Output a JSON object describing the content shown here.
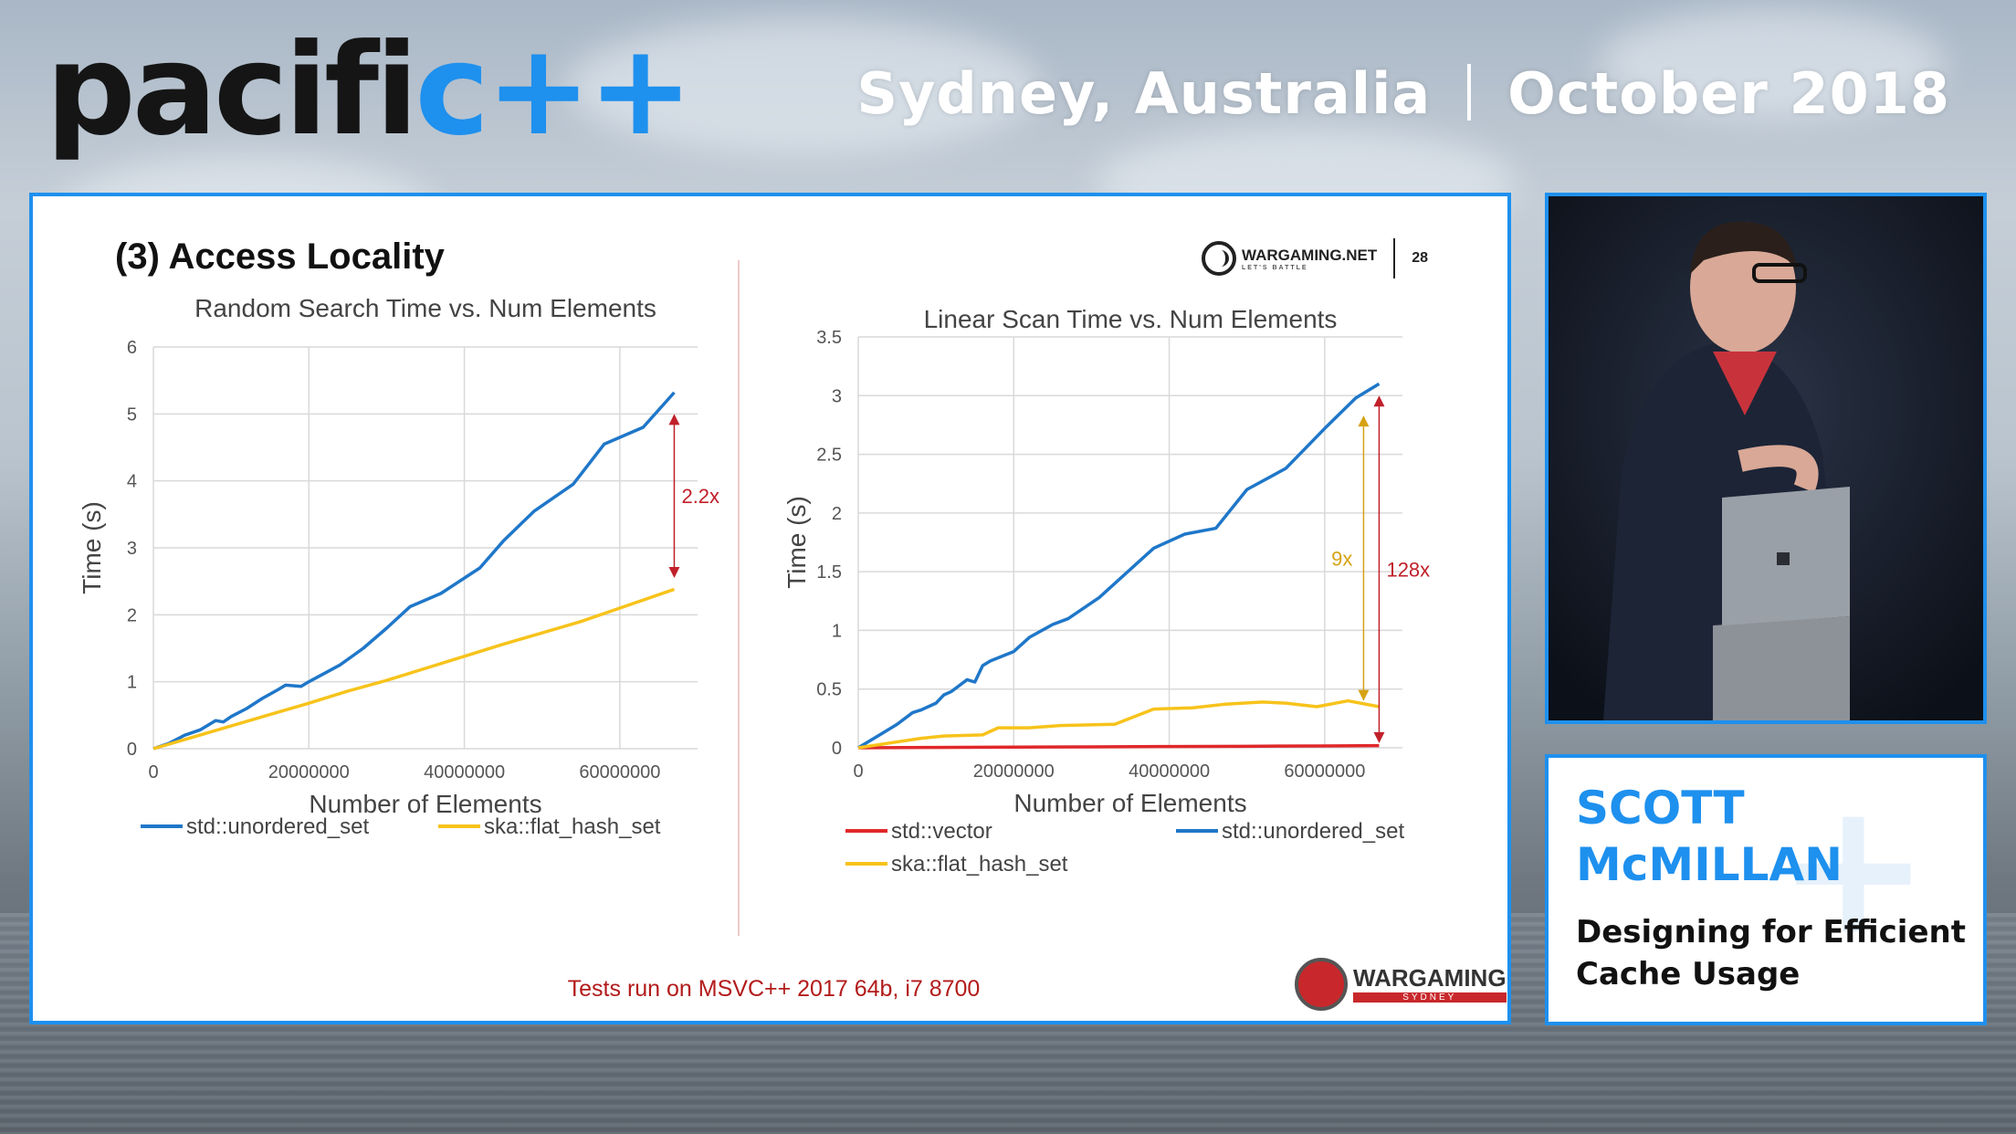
{
  "header": {
    "logo_main": "pacifi",
    "logo_accent": "c++",
    "location": "Sydney, Australia",
    "date": "October 2018"
  },
  "slide": {
    "title": "(3) Access Locality",
    "brand": "WARGAMING.NET",
    "brand_tagline": "LET'S BATTLE",
    "page_number": "28",
    "footer_note": "Tests run on MSVC++ 2017 64b, i7 8700",
    "bottom_brand": "WARGAMING",
    "bottom_brand_sub": "SYDNEY"
  },
  "speaker": {
    "name_line1": "SCOTT",
    "name_line2": "McMILLAN",
    "talk_line1": "Designing for Efficient",
    "talk_line2": "Cache Usage"
  },
  "colors": {
    "accent": "#1e90ee",
    "unordered_set": "#1f77c9",
    "flat_hash_set": "#f7c31b",
    "vector": "#e0282b",
    "annotation_red": "#c0202a",
    "annotation_gold": "#d6a214"
  },
  "chart_data": [
    {
      "type": "line",
      "title": "Random Search Time vs. Num Elements",
      "xlabel": "Number of Elements",
      "ylabel": "Time (s)",
      "xlim": [
        0,
        70000000
      ],
      "ylim": [
        0,
        6
      ],
      "x_ticks": [
        0,
        20000000,
        40000000,
        60000000
      ],
      "x_tick_labels": [
        "0",
        "20000000",
        "40000000",
        "60000000"
      ],
      "y_ticks": [
        0,
        1,
        2,
        3,
        4,
        5,
        6
      ],
      "y_tick_labels": [
        "0",
        "1",
        "2",
        "3",
        "4",
        "5",
        "6"
      ],
      "grid": true,
      "legend": "bottom",
      "series": [
        {
          "name": "std::unordered_set",
          "color": "#1f77c9",
          "x": [
            0,
            2000000,
            4000000,
            6000000,
            8000000,
            9000000,
            10000000,
            12000000,
            14000000,
            16000000,
            17000000,
            19000000,
            20000000,
            24000000,
            27000000,
            30000000,
            33000000,
            37000000,
            42000000,
            45000000,
            49000000,
            54000000,
            58000000,
            63000000,
            67000000
          ],
          "y": [
            0,
            0.08,
            0.2,
            0.28,
            0.42,
            0.4,
            0.48,
            0.6,
            0.75,
            0.88,
            0.95,
            0.93,
            1.0,
            1.25,
            1.5,
            1.8,
            2.12,
            2.32,
            2.7,
            3.1,
            3.55,
            3.95,
            4.55,
            4.8,
            5.32
          ]
        },
        {
          "name": "ska::flat_hash_set",
          "color": "#f7c31b",
          "x": [
            0,
            5000000,
            10000000,
            15000000,
            20000000,
            25000000,
            30000000,
            35000000,
            40000000,
            45000000,
            50000000,
            55000000,
            60000000,
            67000000
          ],
          "y": [
            0,
            0.17,
            0.34,
            0.51,
            0.68,
            0.86,
            1.02,
            1.2,
            1.38,
            1.56,
            1.73,
            1.9,
            2.1,
            2.38
          ]
        }
      ],
      "annotations": [
        {
          "text": "2.2x",
          "x": 67000000,
          "y_from": 5.0,
          "y_to": 2.55,
          "color": "#c0202a"
        }
      ]
    },
    {
      "type": "line",
      "title": "Linear Scan Time vs. Num Elements",
      "xlabel": "Number of Elements",
      "ylabel": "Time (s)",
      "xlim": [
        0,
        70000000
      ],
      "ylim": [
        0,
        3.5
      ],
      "x_ticks": [
        0,
        20000000,
        40000000,
        60000000
      ],
      "x_tick_labels": [
        "0",
        "20000000",
        "40000000",
        "60000000"
      ],
      "y_ticks": [
        0,
        0.5,
        1,
        1.5,
        2,
        2.5,
        3,
        3.5
      ],
      "y_tick_labels": [
        "0",
        "0.5",
        "1",
        "1.5",
        "2",
        "2.5",
        "3",
        "3.5"
      ],
      "grid": true,
      "legend": "bottom",
      "series": [
        {
          "name": "std::vector",
          "color": "#e0282b",
          "x": [
            0,
            10000000,
            20000000,
            30000000,
            40000000,
            50000000,
            60000000,
            67000000
          ],
          "y": [
            0,
            0.003,
            0.006,
            0.008,
            0.011,
            0.013,
            0.016,
            0.018
          ]
        },
        {
          "name": "std::unordered_set",
          "color": "#1f77c9",
          "x": [
            0,
            3000000,
            5000000,
            7000000,
            8000000,
            10000000,
            11000000,
            12000000,
            14000000,
            15000000,
            16000000,
            17000000,
            20000000,
            22000000,
            25000000,
            27000000,
            31000000,
            38000000,
            42000000,
            46000000,
            50000000,
            55000000,
            60000000,
            64000000,
            67000000
          ],
          "y": [
            0,
            0.12,
            0.2,
            0.3,
            0.32,
            0.38,
            0.45,
            0.48,
            0.58,
            0.56,
            0.7,
            0.74,
            0.82,
            0.94,
            1.05,
            1.1,
            1.28,
            1.7,
            1.82,
            1.87,
            2.2,
            2.38,
            2.72,
            2.98,
            3.1
          ]
        },
        {
          "name": "ska::flat_hash_set",
          "color": "#f7c31b",
          "x": [
            0,
            5000000,
            8000000,
            11000000,
            16000000,
            18000000,
            22000000,
            26000000,
            33000000,
            38000000,
            43000000,
            47000000,
            52000000,
            55000000,
            59000000,
            63000000,
            67000000
          ],
          "y": [
            0,
            0.05,
            0.08,
            0.1,
            0.11,
            0.17,
            0.17,
            0.19,
            0.2,
            0.33,
            0.34,
            0.37,
            0.39,
            0.38,
            0.35,
            0.4,
            0.35
          ]
        }
      ],
      "annotations": [
        {
          "text": "9x",
          "x": 65000000,
          "y_from": 2.83,
          "y_to": 0.4,
          "color": "#d6a214"
        },
        {
          "text": "128x",
          "x": 67000000,
          "y_from": 3.0,
          "y_to": 0.04,
          "color": "#c0202a"
        }
      ]
    }
  ]
}
